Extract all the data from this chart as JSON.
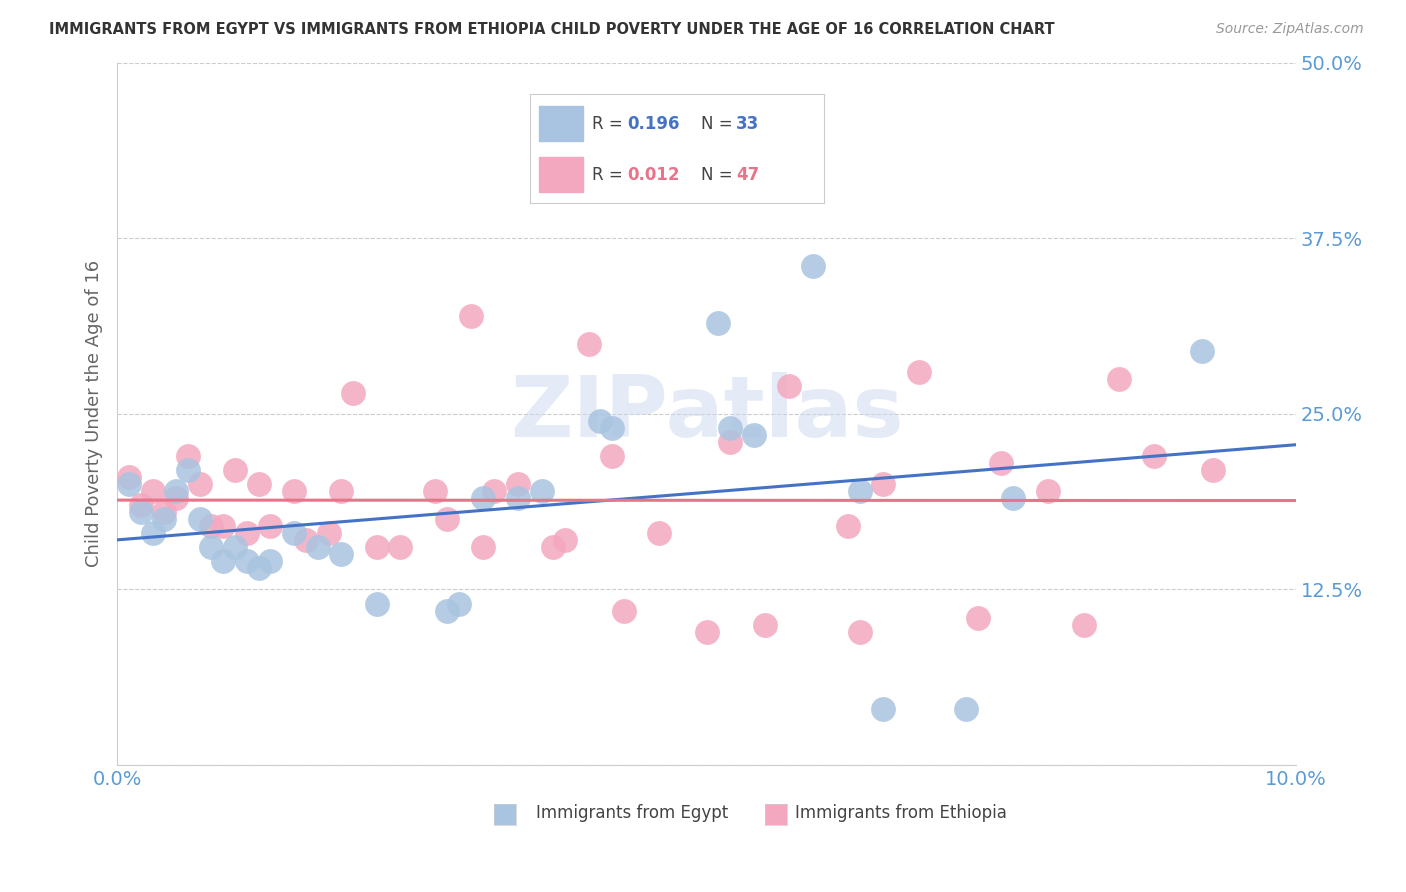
{
  "title": "IMMIGRANTS FROM EGYPT VS IMMIGRANTS FROM ETHIOPIA CHILD POVERTY UNDER THE AGE OF 16 CORRELATION CHART",
  "source": "Source: ZipAtlas.com",
  "ylabel": "Child Poverty Under the Age of 16",
  "xlim": [
    0.0,
    0.1
  ],
  "ylim": [
    0.0,
    0.5
  ],
  "y_ticks": [
    0.0,
    0.125,
    0.25,
    0.375,
    0.5
  ],
  "y_ticklabels": [
    "",
    "12.5%",
    "25.0%",
    "37.5%",
    "50.0%"
  ],
  "x_ticks": [
    0.0,
    0.02,
    0.04,
    0.06,
    0.08,
    0.1
  ],
  "x_ticklabels": [
    "0.0%",
    "",
    "",
    "",
    "",
    "10.0%"
  ],
  "egypt_color": "#a8c4e0",
  "ethiopia_color": "#f4a8c0",
  "egypt_line_color": "#4472c4",
  "ethiopia_line_color": "#e8748a",
  "egypt_R": 0.196,
  "egypt_N": 33,
  "ethiopia_R": 0.012,
  "ethiopia_N": 47,
  "egypt_x": [
    0.001,
    0.002,
    0.003,
    0.004,
    0.005,
    0.006,
    0.007,
    0.008,
    0.009,
    0.01,
    0.011,
    0.012,
    0.013,
    0.015,
    0.017,
    0.019,
    0.022,
    0.028,
    0.029,
    0.031,
    0.034,
    0.036,
    0.041,
    0.042,
    0.051,
    0.052,
    0.054,
    0.059,
    0.063,
    0.065,
    0.072,
    0.076,
    0.092
  ],
  "egypt_y": [
    0.2,
    0.18,
    0.165,
    0.175,
    0.195,
    0.21,
    0.175,
    0.155,
    0.145,
    0.155,
    0.145,
    0.14,
    0.145,
    0.165,
    0.155,
    0.15,
    0.115,
    0.11,
    0.115,
    0.19,
    0.19,
    0.195,
    0.245,
    0.24,
    0.315,
    0.24,
    0.235,
    0.355,
    0.195,
    0.04,
    0.04,
    0.19,
    0.295
  ],
  "ethiopia_x": [
    0.001,
    0.002,
    0.003,
    0.004,
    0.005,
    0.006,
    0.007,
    0.008,
    0.009,
    0.01,
    0.011,
    0.012,
    0.013,
    0.015,
    0.016,
    0.018,
    0.019,
    0.02,
    0.022,
    0.024,
    0.027,
    0.028,
    0.03,
    0.031,
    0.032,
    0.034,
    0.037,
    0.038,
    0.04,
    0.042,
    0.043,
    0.046,
    0.05,
    0.052,
    0.055,
    0.057,
    0.062,
    0.063,
    0.065,
    0.068,
    0.073,
    0.075,
    0.079,
    0.082,
    0.085,
    0.088,
    0.093
  ],
  "ethiopia_y": [
    0.205,
    0.185,
    0.195,
    0.18,
    0.19,
    0.22,
    0.2,
    0.17,
    0.17,
    0.21,
    0.165,
    0.2,
    0.17,
    0.195,
    0.16,
    0.165,
    0.195,
    0.265,
    0.155,
    0.155,
    0.195,
    0.175,
    0.32,
    0.155,
    0.195,
    0.2,
    0.155,
    0.16,
    0.3,
    0.22,
    0.11,
    0.165,
    0.095,
    0.23,
    0.1,
    0.27,
    0.17,
    0.095,
    0.2,
    0.28,
    0.105,
    0.215,
    0.195,
    0.1,
    0.275,
    0.22,
    0.21
  ],
  "background_color": "#ffffff",
  "grid_color": "#cccccc",
  "title_color": "#333333",
  "axis_tick_color": "#5b9bd5",
  "watermark_text": "ZIPatlas",
  "watermark_color": "#ccd9ef",
  "watermark_alpha": 0.5
}
